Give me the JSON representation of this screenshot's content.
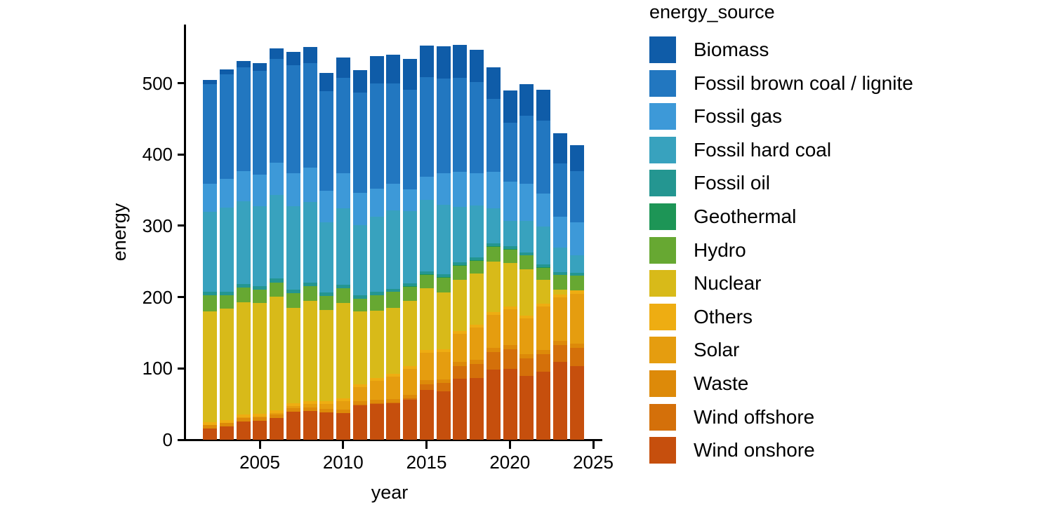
{
  "chart_data": {
    "type": "bar",
    "stacked": true,
    "xlabel": "year",
    "ylabel": "energy",
    "legend_title": "energy_source",
    "legend_position": "right",
    "grid": false,
    "ylim": [
      0,
      580
    ],
    "y_ticks": [
      0,
      100,
      200,
      300,
      400,
      500
    ],
    "x_ticks": [
      2005,
      2010,
      2015,
      2020,
      2025
    ],
    "years": [
      2002,
      2003,
      2004,
      2005,
      2006,
      2007,
      2008,
      2009,
      2010,
      2011,
      2012,
      2013,
      2014,
      2015,
      2016,
      2017,
      2018,
      2019,
      2020,
      2021,
      2022,
      2023,
      2024
    ],
    "stack_note": "series listed top-of-stack first; bars are stacked bottom-up from the last series",
    "series": [
      {
        "name": "Biomass",
        "color": "#0f5ca8",
        "values": [
          5,
          7,
          8,
          11,
          14,
          19,
          22,
          25,
          28,
          31,
          38,
          40,
          42,
          44,
          45,
          45,
          45,
          44,
          45,
          43,
          43,
          42,
          36
        ]
      },
      {
        "name": "Fossil brown coal / lignite",
        "color": "#2277c0",
        "values": [
          140,
          146,
          146,
          145,
          145,
          151,
          146,
          140,
          134,
          141,
          148,
          141,
          140,
          139,
          132,
          132,
          128,
          102,
          82,
          96,
          102,
          75,
          71
        ]
      },
      {
        "name": "Fossil gas",
        "color": "#3d99d8",
        "values": [
          39,
          40,
          42,
          44,
          46,
          46,
          49,
          44,
          49,
          45,
          39,
          37,
          31,
          33,
          45,
          49,
          45,
          52,
          55,
          52,
          47,
          43,
          47
        ]
      },
      {
        "name": "Fossil hard coal",
        "color": "#38a2be",
        "values": [
          112,
          118,
          116,
          112,
          117,
          117,
          113,
          99,
          107,
          98,
          105,
          110,
          101,
          100,
          97,
          78,
          73,
          49,
          36,
          44,
          53,
          34,
          24
        ]
      },
      {
        "name": "Fossil oil",
        "color": "#249691",
        "values": [
          5,
          5,
          5,
          5,
          5,
          5,
          5,
          5,
          5,
          5,
          5,
          4,
          4,
          4,
          4,
          4,
          4,
          4,
          4,
          4,
          4,
          4,
          4
        ]
      },
      {
        "name": "Geothermal",
        "color": "#1d9556",
        "values": [
          0,
          0,
          0,
          0,
          0,
          0,
          0,
          0,
          0,
          0.1,
          0.1,
          0.1,
          0.1,
          0.2,
          0.2,
          0.2,
          0.2,
          0.2,
          0.2,
          0.2,
          0.2,
          0.2,
          0.2
        ]
      },
      {
        "name": "Hydro",
        "color": "#67a832",
        "values": [
          23,
          19,
          20,
          19,
          20,
          21,
          20,
          19,
          21,
          18,
          22,
          23,
          20,
          19,
          21,
          20,
          18,
          20.6,
          18.7,
          19.7,
          17.5,
          20.5,
          21
        ]
      },
      {
        "name": "Nuclear",
        "color": "#d8ba19",
        "values": [
          155,
          156,
          158,
          155,
          159,
          133,
          141,
          128,
          133,
          102,
          94,
          92,
          92,
          87,
          80,
          72,
          72,
          71,
          61,
          65,
          33,
          6.7,
          0
        ]
      },
      {
        "name": "Others",
        "color": "#eead12",
        "values": [
          4,
          4,
          4,
          4,
          4,
          4,
          4,
          4,
          4,
          4,
          4,
          4,
          4,
          4,
          4,
          4,
          4,
          4,
          4,
          4,
          4,
          4,
          4
        ]
      },
      {
        "name": "Solar",
        "color": "#e59d0f",
        "values": [
          0.2,
          0.3,
          0.6,
          1.3,
          2.2,
          3.1,
          4.4,
          6.6,
          11.7,
          19.6,
          26.4,
          31,
          36.1,
          38.7,
          38,
          39.8,
          45.7,
          46.5,
          50.6,
          50,
          60.8,
          61,
          70
        ]
      },
      {
        "name": "Waste",
        "color": "#dd8a09",
        "values": [
          5,
          5,
          5,
          5,
          5,
          5,
          5,
          5,
          5,
          5,
          5,
          5,
          5,
          5.3,
          5.3,
          5.5,
          5.8,
          5.8,
          5.8,
          5.8,
          5.8,
          5.8,
          5.8
        ]
      },
      {
        "name": "Wind offshore",
        "color": "#d4700a",
        "values": [
          0,
          0,
          0,
          0,
          0,
          0,
          0,
          0,
          0.2,
          0.6,
          0.7,
          0.9,
          1.4,
          8.3,
          12,
          17.7,
          19.3,
          24.4,
          27.3,
          24.4,
          24.8,
          23.5,
          25.7
        ]
      },
      {
        "name": "Wind onshore",
        "color": "#c64f0d",
        "values": [
          16,
          19,
          26,
          27,
          31,
          40,
          41,
          39,
          38,
          49,
          51,
          52,
          57,
          70,
          68,
          86,
          87,
          99,
          100,
          90,
          96,
          110,
          104
        ]
      }
    ]
  }
}
